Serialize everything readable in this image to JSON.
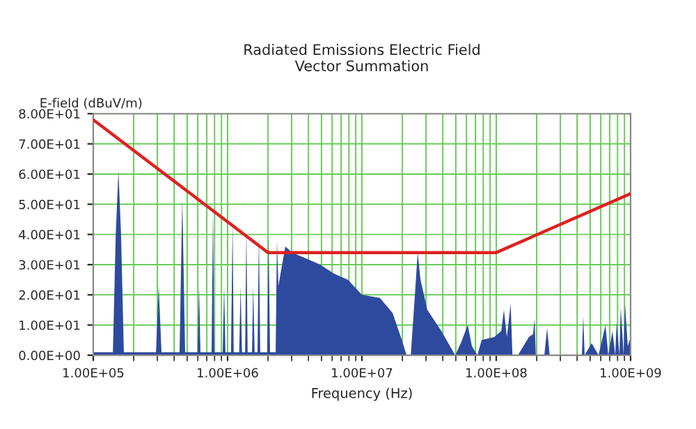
{
  "chart_data": {
    "type": "area",
    "title": "Radiated Emissions Electric Field\nVector Summation",
    "xlabel": "Frequency (Hz)",
    "ylabel": "E-field (dBuV/m)",
    "log": "x",
    "grid": true,
    "xlim": [
      100000,
      1000000000
    ],
    "xticks": [
      {
        "value": 100000,
        "label": "1.00E+05"
      },
      {
        "value": 1000000,
        "label": "1.00E+06"
      },
      {
        "value": 10000000,
        "label": "1.00E+07"
      },
      {
        "value": 100000000,
        "label": "1.00E+08"
      },
      {
        "value": 1000000000,
        "label": "1.00E+09"
      }
    ],
    "ylim": [
      0,
      80
    ],
    "yticks": [
      {
        "value": 0,
        "label": "0.00E+00"
      },
      {
        "value": 10,
        "label": "1.00E+01"
      },
      {
        "value": 20,
        "label": "2.00E+01"
      },
      {
        "value": 30,
        "label": "3.00E+01"
      },
      {
        "value": 40,
        "label": "4.00E+01"
      },
      {
        "value": 50,
        "label": "5.00E+01"
      },
      {
        "value": 60,
        "label": "6.00E+01"
      },
      {
        "value": 70,
        "label": "7.00E+01"
      },
      {
        "value": 80,
        "label": "8.00E+01"
      }
    ],
    "series": [
      {
        "color": "#2e4a9e",
        "x": [
          100000,
          140000,
          147000,
          154000,
          161000,
          169000,
          293000,
          307000,
          322000,
          439000,
          460000,
          483000,
          598000,
          613000,
          628000,
          760000,
          778000,
          797000,
          920000,
          942000,
          964000,
          1060000,
          1090000,
          1110000,
          1220000,
          1250000,
          1280000,
          1350000,
          1380000,
          1410000,
          1520000,
          1550000,
          1590000,
          1670000,
          1710000,
          1750000,
          1970000,
          2020000,
          2070000,
          2280000,
          2330000,
          2390000,
          2690000,
          3030000,
          3850000,
          4890000,
          6210000,
          7870000,
          10000000,
          13600000,
          16900000,
          19500000,
          21500000,
          23100000,
          24800000,
          26000000,
          27300000,
          30700000,
          39000000,
          49500000,
          54500000,
          61300000,
          65900000,
          72400000,
          77800000,
          96400000,
          109000000,
          114000000,
          120000000,
          128000000,
          132000000,
          145000000,
          175000000,
          188000000,
          193000000,
          197000000,
          228000000,
          239000000,
          250000000,
          434000000,
          444000000,
          455000000,
          513000000,
          578000000,
          650000000,
          682000000,
          733000000,
          769000000,
          787000000,
          826000000,
          845000000,
          887000000,
          909000000,
          953000000,
          1000000000
        ],
        "values": [
          1,
          1,
          40,
          61,
          40,
          1,
          1,
          23,
          1,
          1,
          52,
          1,
          1,
          23,
          1,
          1,
          47,
          1,
          1,
          23,
          1,
          1,
          44,
          1,
          1,
          23,
          1,
          1,
          42,
          1,
          1,
          23,
          1,
          1,
          40,
          1,
          1,
          39,
          1,
          1,
          38,
          23,
          36,
          34,
          32,
          30,
          27,
          25,
          20,
          19,
          14,
          6,
          0,
          0,
          20,
          34,
          25,
          15,
          8,
          0,
          4,
          10,
          3,
          0,
          5,
          6,
          8,
          15,
          6,
          17,
          0,
          0,
          6,
          7,
          12,
          0,
          0,
          9,
          0,
          0,
          13,
          0,
          4,
          0,
          10,
          0,
          8,
          0,
          11,
          0,
          16,
          0,
          17,
          3,
          6
        ]
      },
      {
        "type": "line",
        "color": "#e02020",
        "x": [
          100000,
          2000000,
          100000000,
          1000000000
        ],
        "values": [
          78,
          34,
          34,
          53.5
        ]
      }
    ]
  }
}
